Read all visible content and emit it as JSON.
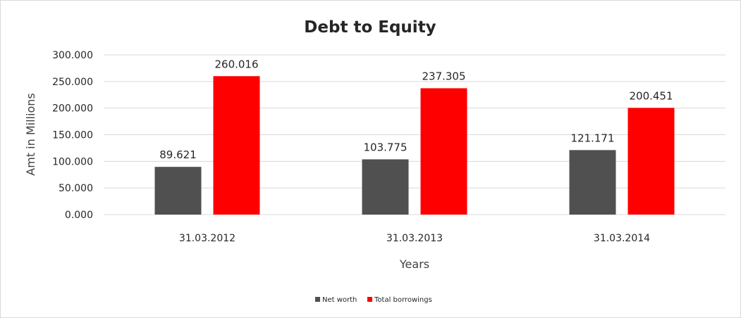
{
  "chart_data": {
    "type": "bar",
    "title": "Debt to Equity",
    "xlabel": "Years",
    "ylabel": "Amt in Millions",
    "categories": [
      "31.03.2012",
      "31.03.2013",
      "31.03.2014"
    ],
    "series": [
      {
        "name": "Net worth",
        "values": [
          89.621,
          103.775,
          121.171
        ],
        "color": "#505050",
        "labels": [
          "89.621",
          "103.775",
          "121.171"
        ]
      },
      {
        "name": "Total borrowings",
        "values": [
          260.016,
          237.305,
          200.451
        ],
        "color": "#ff0000",
        "labels": [
          "260.016",
          "237.305",
          "200.451"
        ]
      }
    ],
    "ylim": [
      0,
      300
    ],
    "yticks": [
      0,
      50,
      100,
      150,
      200,
      250,
      300
    ],
    "ytick_labels": [
      "0.000",
      "50.000",
      "100.000",
      "150.000",
      "200.000",
      "250.000",
      "300.000"
    ],
    "grid": true,
    "legend": "bottom"
  }
}
